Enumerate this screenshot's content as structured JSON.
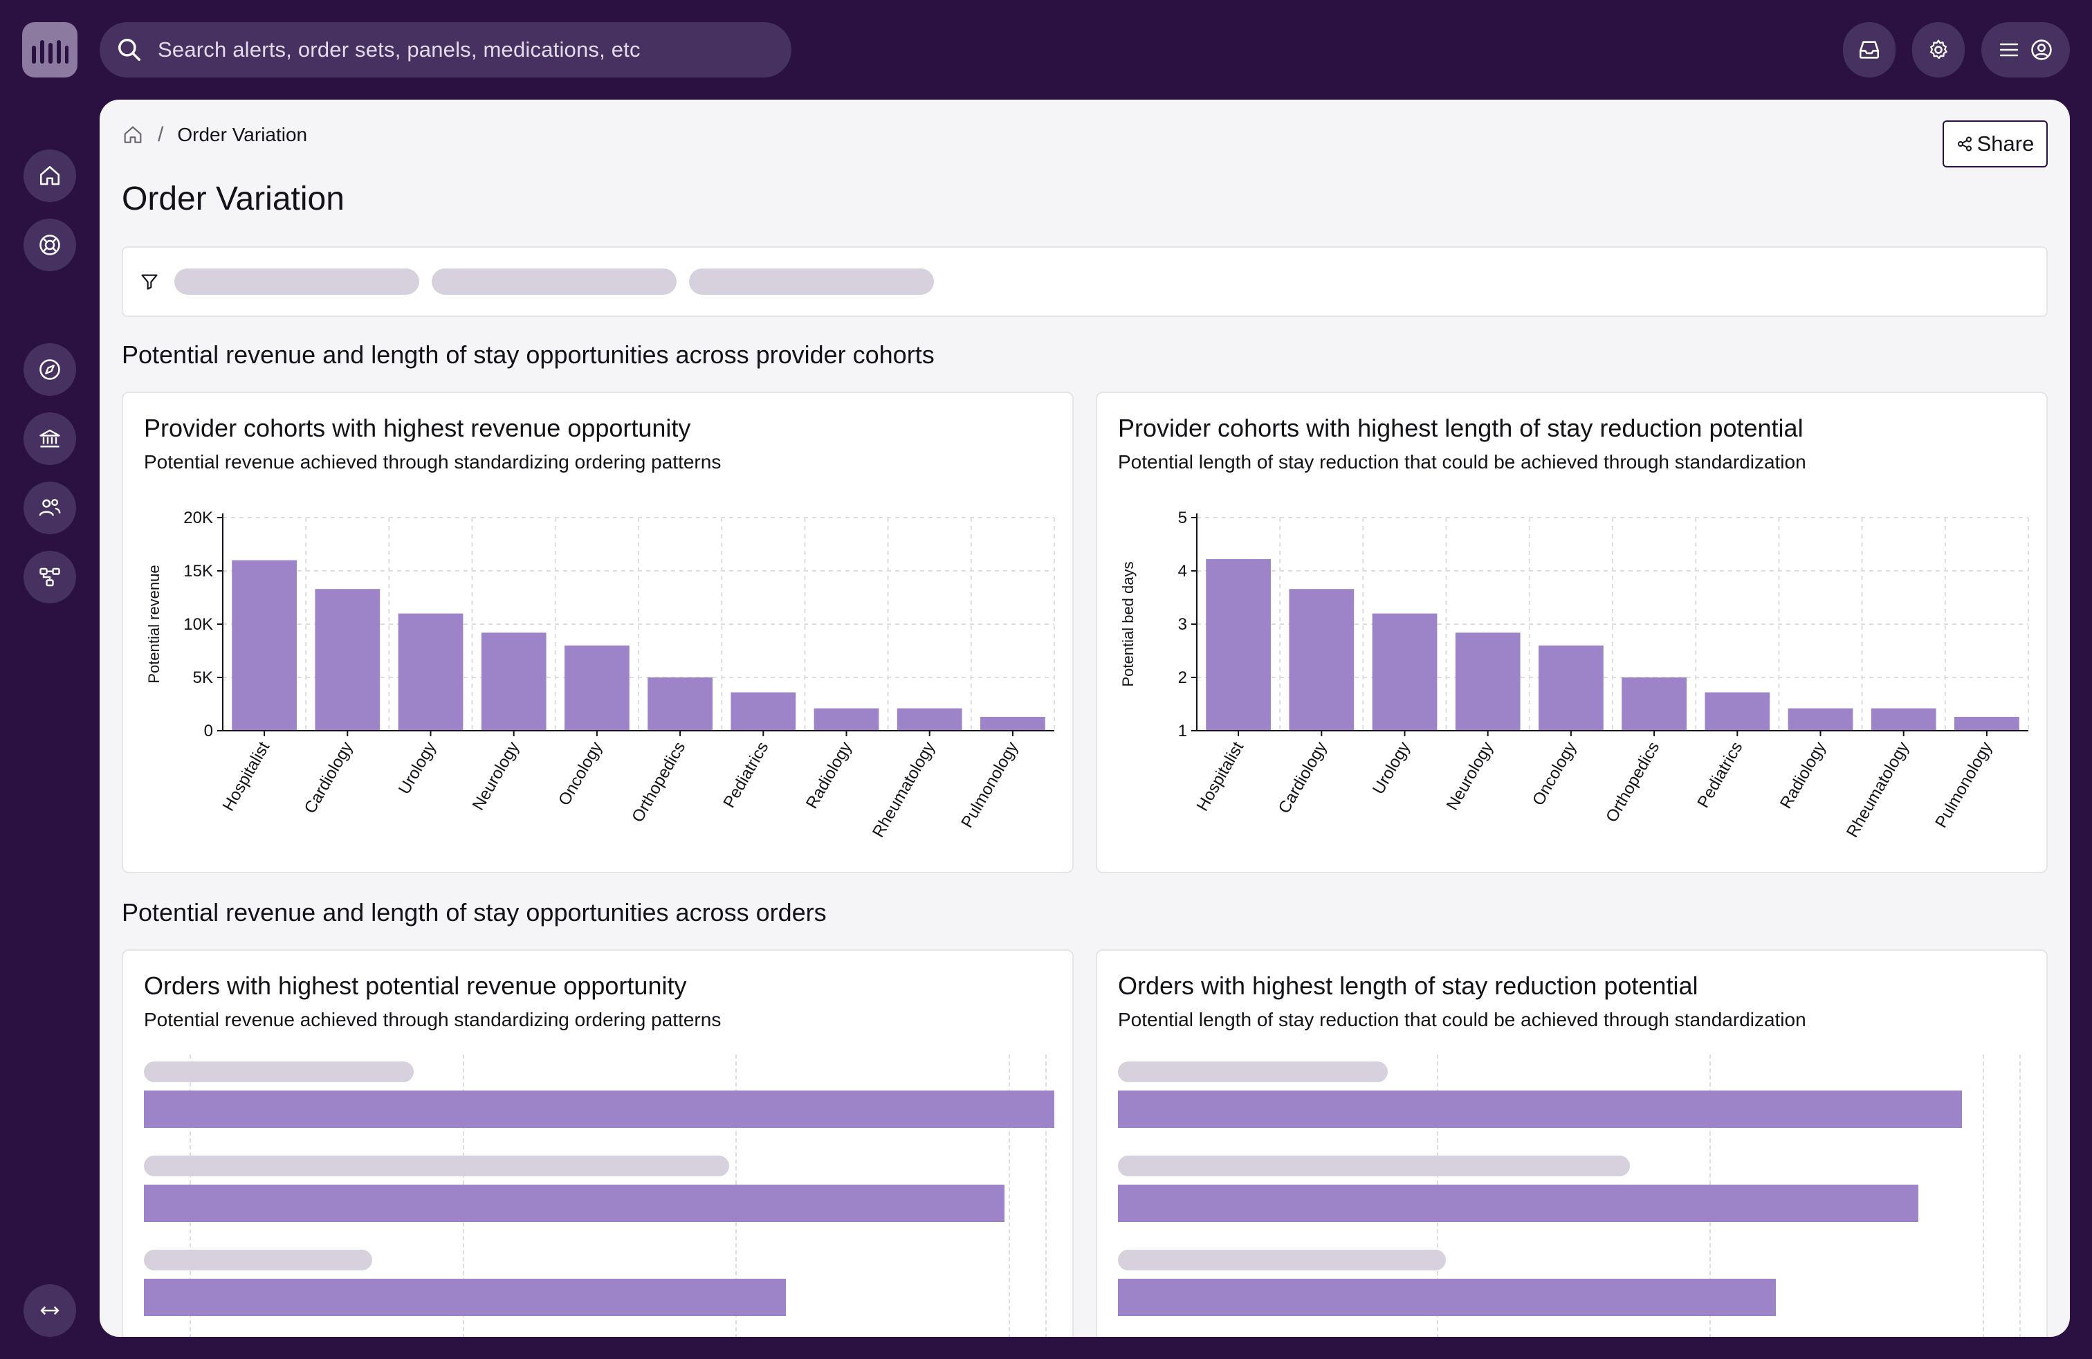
{
  "search": {
    "placeholder": "Search alerts, order sets, panels, medications, etc"
  },
  "breadcrumb": {
    "current": "Order Variation"
  },
  "header": {
    "title": "Order Variation",
    "share_label": "Share"
  },
  "sections": [
    {
      "title": "Potential revenue and length of stay opportunities across provider cohorts"
    },
    {
      "title": "Potential revenue and length of stay opportunities across orders"
    }
  ],
  "colors": {
    "bar": "#9d84c9",
    "background": "#2a1141",
    "panel": "#f5f4f6",
    "skeleton": "#d6d1dc"
  },
  "cards": {
    "revenue_cohorts": {
      "title": "Provider cohorts with highest revenue opportunity",
      "subtitle": "Potential revenue achieved through standardizing ordering patterns"
    },
    "los_cohorts": {
      "title": "Provider cohorts with highest length of stay reduction potential",
      "subtitle": "Potential length of stay reduction that could be achieved through standardization"
    },
    "revenue_orders": {
      "title": "Orders with highest potential revenue opportunity",
      "subtitle": "Potential revenue achieved through standardizing ordering patterns"
    },
    "los_orders": {
      "title": "Orders with highest length of stay reduction potential",
      "subtitle": "Potential length of stay reduction that could be achieved through standardization"
    }
  },
  "chart_data": [
    {
      "type": "bar",
      "categories": [
        "Hospitalist",
        "Cardiology",
        "Urology",
        "Neurology",
        "Oncology",
        "Orthopedics",
        "Pediatrics",
        "Radiology",
        "Rheumatology",
        "Pulmonology"
      ],
      "values": [
        16000,
        13300,
        11000,
        9200,
        8000,
        5000,
        3600,
        2100,
        2100,
        1300
      ],
      "ylabel": "Potential revenue",
      "ylim": [
        0,
        20000
      ],
      "yticks": [
        0,
        5000,
        10000,
        15000,
        20000
      ],
      "ytick_labels": [
        "0",
        "5K",
        "10K",
        "15K",
        "20K"
      ],
      "grid": true
    },
    {
      "type": "bar",
      "categories": [
        "Hospitalist",
        "Cardiology",
        "Urology",
        "Neurology",
        "Oncology",
        "Orthopedics",
        "Pediatrics",
        "Radiology",
        "Rheumatology",
        "Pulmonology"
      ],
      "values": [
        4.22,
        3.66,
        3.2,
        2.84,
        2.6,
        2.0,
        1.72,
        1.42,
        1.42,
        1.26
      ],
      "ylabel": "Potential bed days",
      "ylim": [
        1,
        5
      ],
      "yticks": [
        1,
        2,
        3,
        4,
        5
      ],
      "ytick_labels": [
        "1",
        "2",
        "3",
        "4",
        "5"
      ],
      "grid": true
    },
    {
      "type": "bar",
      "orientation": "horizontal",
      "values": [
        1.0,
        0.945,
        0.705
      ],
      "grid": true
    },
    {
      "type": "bar",
      "orientation": "horizontal",
      "values": [
        0.927,
        0.879,
        0.723
      ],
      "grid": true
    }
  ]
}
